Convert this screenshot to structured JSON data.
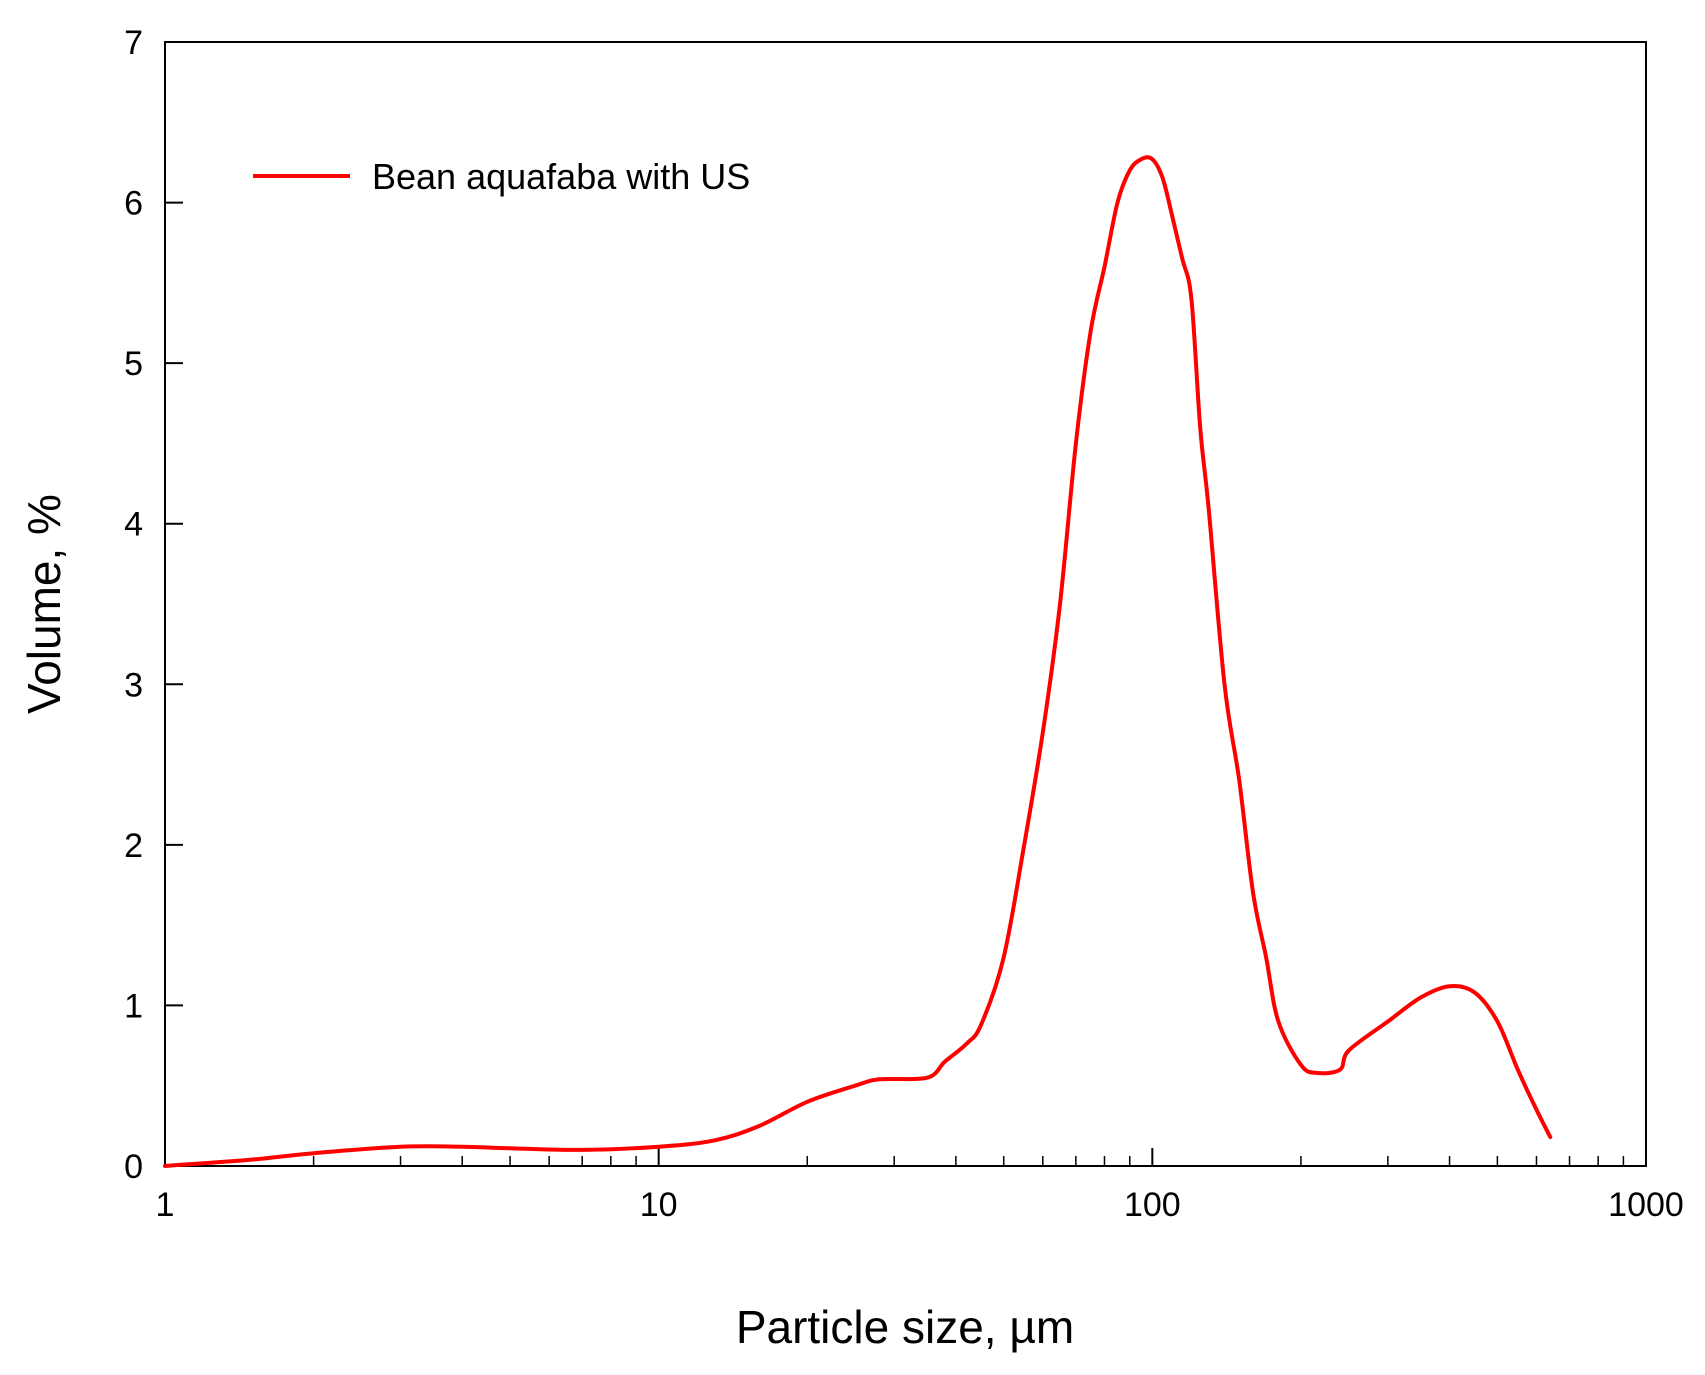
{
  "chart_data": {
    "type": "line",
    "xlabel": "Particle size, µm",
    "ylabel": "Volume, %",
    "xscale": "log",
    "xlim": [
      1,
      1000
    ],
    "ylim": [
      0,
      7
    ],
    "x_ticks": [
      {
        "value": 1,
        "label": "1"
      },
      {
        "value": 10,
        "label": "10"
      },
      {
        "value": 100,
        "label": "100"
      },
      {
        "value": 1000,
        "label": "1000"
      }
    ],
    "y_ticks": [
      {
        "value": 0,
        "label": "0"
      },
      {
        "value": 1,
        "label": "1"
      },
      {
        "value": 2,
        "label": "2"
      },
      {
        "value": 3,
        "label": "3"
      },
      {
        "value": 4,
        "label": "4"
      },
      {
        "value": 5,
        "label": "5"
      },
      {
        "value": 6,
        "label": "6"
      },
      {
        "value": 7,
        "label": "7"
      }
    ],
    "grid": false,
    "legend_position": "top-left",
    "series": [
      {
        "name": "Bean aquafaba with US",
        "color": "#ff0000",
        "x": [
          1,
          1.5,
          2,
          3,
          4,
          5,
          7,
          10,
          13,
          16,
          20,
          25,
          28,
          35,
          38,
          42,
          45,
          50,
          55,
          60,
          65,
          70,
          75,
          80,
          85,
          90,
          95,
          100,
          105,
          110,
          115,
          120,
          125,
          130,
          140,
          150,
          160,
          170,
          180,
          200,
          215,
          240,
          250,
          300,
          350,
          400,
          450,
          500,
          550,
          600,
          640
        ],
        "y": [
          0.0,
          0.04,
          0.08,
          0.12,
          0.12,
          0.11,
          0.1,
          0.12,
          0.16,
          0.25,
          0.4,
          0.5,
          0.54,
          0.55,
          0.65,
          0.76,
          0.88,
          1.3,
          2.0,
          2.7,
          3.5,
          4.5,
          5.2,
          5.6,
          6.0,
          6.2,
          6.27,
          6.27,
          6.15,
          5.9,
          5.65,
          5.4,
          4.6,
          4.1,
          3.0,
          2.4,
          1.7,
          1.3,
          0.9,
          0.63,
          0.58,
          0.6,
          0.72,
          0.9,
          1.05,
          1.12,
          1.08,
          0.9,
          0.6,
          0.35,
          0.18
        ]
      }
    ]
  }
}
